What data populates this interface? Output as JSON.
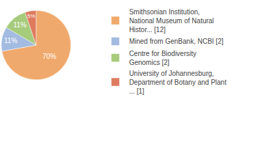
{
  "chart_data": {
    "type": "pie",
    "categories": [
      "Smithsonian Institution, National Museum of Natural Histor... [12]",
      "Mined from GenBank, NCBI [2]",
      "Centre for Biodiversity Genomics [2]",
      "University of Johannesburg, Department of Botany and Plant ... [1]"
    ],
    "values": [
      70,
      11,
      11,
      5
    ],
    "value_labels": [
      "70%",
      "11%",
      "11%",
      "5%"
    ],
    "colors": [
      "#f0a96c",
      "#a3bbe0",
      "#a6cb7b",
      "#de7b5e"
    ],
    "data_labels": true,
    "legend": "right"
  }
}
